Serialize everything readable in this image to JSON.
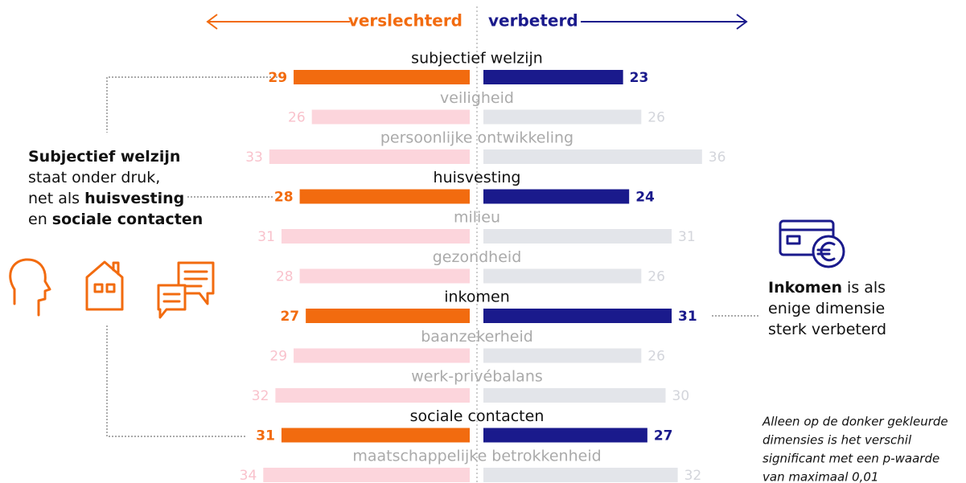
{
  "chart_data": {
    "type": "diverging_bar",
    "categories": [
      "subjectief welzijn",
      "veiligheid",
      "persoonlijke ontwikkeling",
      "huisvesting",
      "milieu",
      "gezondheid",
      "inkomen",
      "baanzekerheid",
      "werk-privébalans",
      "sociale contacten",
      "maatschappelijke betrokkenheid"
    ],
    "highlight": [
      true,
      false,
      false,
      true,
      false,
      false,
      true,
      false,
      false,
      true,
      false
    ],
    "series": [
      {
        "name": "verslechterd",
        "color": "#f26b0f",
        "faded_color": "#fcd5dc",
        "values": [
          29,
          26,
          33,
          28,
          31,
          28,
          27,
          29,
          32,
          31,
          34
        ]
      },
      {
        "name": "verbeterd",
        "color": "#1a1a8c",
        "faded_color": "#e3e5ea",
        "values": [
          23,
          26,
          36,
          24,
          31,
          26,
          31,
          26,
          30,
          27,
          32
        ]
      }
    ],
    "left_note": [
      [
        {
          "text": "Subjectief welzijn",
          "bold": true
        }
      ],
      [
        {
          "text": "staat onder druk,",
          "bold": false
        }
      ],
      [
        {
          "text": "net als ",
          "bold": false
        },
        {
          "text": "huisvesting",
          "bold": true
        }
      ],
      [
        {
          "text": "en ",
          "bold": false
        },
        {
          "text": "sociale contacten",
          "bold": true
        }
      ]
    ],
    "right_note": [
      [
        {
          "text": "Inkomen",
          "bold": true
        },
        {
          "text": " is als",
          "bold": false
        }
      ],
      [
        {
          "text": "enige dimensie",
          "bold": false
        }
      ],
      [
        {
          "text": "sterk verbeterd",
          "bold": false
        }
      ]
    ],
    "footnote": [
      "Alleen op de donker gekleurde",
      "dimensies is het verschil",
      "significant met een p-waarde",
      "van maximaal 0,01"
    ]
  }
}
